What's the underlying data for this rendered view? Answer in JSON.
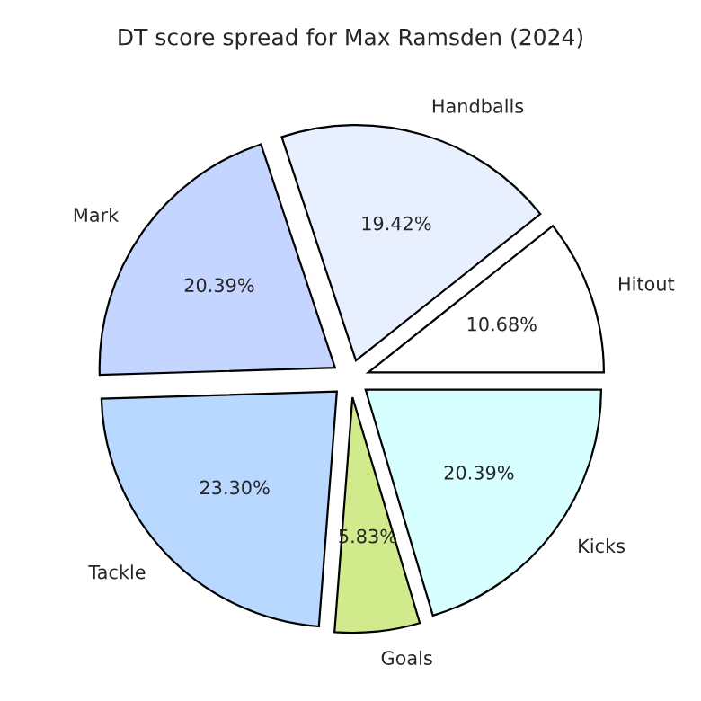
{
  "chart_data": {
    "type": "pie",
    "title": "DT score spread for Max Ramsden (2024)",
    "categories": [
      "Hitout",
      "Handballs",
      "Mark",
      "Tackle",
      "Goals",
      "Kicks"
    ],
    "values": [
      10.68,
      19.42,
      20.39,
      23.3,
      5.83,
      20.39
    ],
    "value_labels": [
      "10.68%",
      "19.42%",
      "20.39%",
      "23.30%",
      "5.83%",
      "20.39%"
    ],
    "colors": [
      "#ffffff",
      "#e8f0ff",
      "#c4d6ff",
      "#b8d8ff",
      "#d0ea8c",
      "#d8ffff"
    ]
  }
}
